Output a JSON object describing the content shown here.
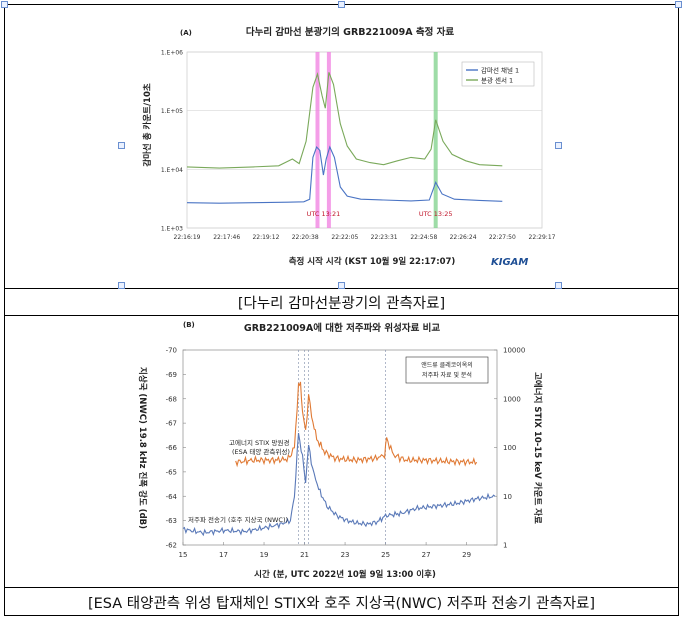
{
  "caption1": "[다누리 감마선분광기의 관측자료]",
  "caption2": "[ESA 태양관측 위성 탑재체인 STIX와 호주 지상국(NWC) 저주파 전송기 관측자료]",
  "chart_data": [
    {
      "type": "line",
      "panel_label": "(A)",
      "title": "다누리 감마선 분광기의 GRB221009A 측정 자료",
      "xlabel": "측정 시작 시각 (KST 10월 9일 22:17:07)",
      "ylabel": "감마선 총 카운트/10초",
      "logo": "KIGAM",
      "y_scale": "log",
      "ylim": [
        1000,
        1000000
      ],
      "y_ticks": [
        "1.E+03",
        "1.E+04",
        "1.E+05",
        "1.E+06"
      ],
      "x_ticks": [
        "22:16:19",
        "22:17:46",
        "22:19:12",
        "22:20:38",
        "22:22:05",
        "22:23:31",
        "22:24:58",
        "22:26:24",
        "22:27:50",
        "22:29:17"
      ],
      "legend": [
        "감마선 채널 1",
        "분광 센서 1"
      ],
      "legend_position": "top-right",
      "annotations": [
        {
          "text": "UTC 13:21",
          "color": "#c0172b"
        },
        {
          "text": "UTC 13:25",
          "color": "#c0172b"
        }
      ],
      "highlight_bands": [
        {
          "x": "22:21:05",
          "color": "#f07ee0"
        },
        {
          "x": "22:21:30",
          "color": "#f07ee0"
        },
        {
          "x": "22:25:24",
          "color": "#7ed08a"
        }
      ],
      "series": [
        {
          "name": "감마선 채널 1",
          "color": "#4a74c4",
          "points": [
            [
              "22:16:19",
              2700
            ],
            [
              "22:17:30",
              2650
            ],
            [
              "22:18:45",
              2700
            ],
            [
              "22:20:00",
              2750
            ],
            [
              "22:20:35",
              2800
            ],
            [
              "22:20:48",
              3100
            ],
            [
              "22:20:55",
              16000
            ],
            [
              "22:21:03",
              24000
            ],
            [
              "22:21:10",
              21000
            ],
            [
              "22:21:18",
              8000
            ],
            [
              "22:21:24",
              15000
            ],
            [
              "22:21:32",
              24000
            ],
            [
              "22:21:42",
              16000
            ],
            [
              "22:21:55",
              5000
            ],
            [
              "22:22:10",
              3500
            ],
            [
              "22:22:40",
              3100
            ],
            [
              "22:23:30",
              3000
            ],
            [
              "22:24:30",
              2900
            ],
            [
              "22:25:10",
              3000
            ],
            [
              "22:25:24",
              6000
            ],
            [
              "22:25:38",
              3800
            ],
            [
              "22:26:05",
              3100
            ],
            [
              "22:27:00",
              2950
            ],
            [
              "22:27:50",
              2850
            ]
          ]
        },
        {
          "name": "분광 센서 1",
          "color": "#7aa95b",
          "points": [
            [
              "22:16:19",
              11000
            ],
            [
              "22:17:30",
              10500
            ],
            [
              "22:18:45",
              11000
            ],
            [
              "22:19:40",
              11500
            ],
            [
              "22:20:10",
              15000
            ],
            [
              "22:20:25",
              12500
            ],
            [
              "22:20:40",
              30000
            ],
            [
              "22:20:55",
              250000
            ],
            [
              "22:21:05",
              420000
            ],
            [
              "22:21:15",
              180000
            ],
            [
              "22:21:22",
              110000
            ],
            [
              "22:21:30",
              450000
            ],
            [
              "22:21:40",
              280000
            ],
            [
              "22:21:55",
              60000
            ],
            [
              "22:22:10",
              25000
            ],
            [
              "22:22:30",
              15000
            ],
            [
              "22:23:00",
              13000
            ],
            [
              "22:23:30",
              12000
            ],
            [
              "22:24:00",
              14000
            ],
            [
              "22:24:30",
              16000
            ],
            [
              "22:25:00",
              15000
            ],
            [
              "22:25:14",
              22000
            ],
            [
              "22:25:24",
              70000
            ],
            [
              "22:25:40",
              30000
            ],
            [
              "22:26:00",
              18000
            ],
            [
              "22:26:30",
              14000
            ],
            [
              "22:27:00",
              12000
            ],
            [
              "22:27:50",
              11500
            ]
          ]
        }
      ]
    },
    {
      "type": "line",
      "panel_label": "(B)",
      "title": "GRB221009A에 대한 저주파와 위성자료 비교",
      "xlabel": "시간 (분, UTC 2022년 10월 9일 13:00 이후)",
      "ylabel_left": "지상국 (NWC) 19.8 kHz 진폭 강도 (dB)",
      "ylabel_right": "고에너지 STIX 10-15 keV 카운트 자료",
      "xlim": [
        15,
        30.5
      ],
      "x_ticks": [
        15,
        17,
        19,
        21,
        23,
        25,
        27,
        29
      ],
      "ylim_left": [
        -70,
        -62
      ],
      "left_ticks": [
        -70,
        -69,
        -68,
        -67,
        -66,
        -65,
        -64,
        -63,
        -62
      ],
      "right_scale": "log",
      "ylim_right": [
        1,
        10000
      ],
      "right_ticks": [
        10000,
        1000,
        100,
        10,
        1
      ],
      "vlines": [
        20.7,
        21.0,
        21.2,
        25.0
      ],
      "legend_box": "앤드류 클레코이옥의 저주파 자료 및 분석",
      "series": [
        {
          "name": "고에너지 STIX 망원경 (ESA 태양 관측위성)",
          "color": "#e07a35",
          "axis": "right",
          "x": [
            17.6,
            18.5,
            19.5,
            20.2,
            20.5,
            20.7,
            20.8,
            20.9,
            21.05,
            21.2,
            21.35,
            21.6,
            22.0,
            22.5,
            23.5,
            24.5,
            24.95,
            25.05,
            25.4,
            26.0,
            27.0,
            28.0,
            29.5
          ],
          "values": [
            50,
            55,
            55,
            58,
            100,
            1800,
            2000,
            600,
            200,
            1200,
            450,
            150,
            80,
            60,
            55,
            60,
            70,
            150,
            70,
            55,
            55,
            52,
            50
          ]
        },
        {
          "name": "저주파 전송기 (호주 지상국 (NWC))",
          "color": "#5a79b8",
          "axis": "left",
          "x": [
            15,
            16,
            17,
            18,
            19,
            19.8,
            20.3,
            20.5,
            20.7,
            20.9,
            21.05,
            21.2,
            21.4,
            21.7,
            22.1,
            22.6,
            23.1,
            23.6,
            24.1,
            24.6,
            25.0,
            25.4,
            25.8,
            26.5,
            27.5,
            28.5,
            29.5,
            30.4
          ],
          "values": [
            -62.65,
            -62.5,
            -62.6,
            -62.55,
            -62.7,
            -62.85,
            -63.0,
            -64.0,
            -66.6,
            -65.6,
            -64.6,
            -66.1,
            -65.1,
            -64.3,
            -63.6,
            -63.2,
            -63.0,
            -62.9,
            -62.85,
            -62.95,
            -63.2,
            -63.25,
            -63.3,
            -63.5,
            -63.6,
            -63.7,
            -63.9,
            -64.0
          ]
        }
      ]
    }
  ]
}
